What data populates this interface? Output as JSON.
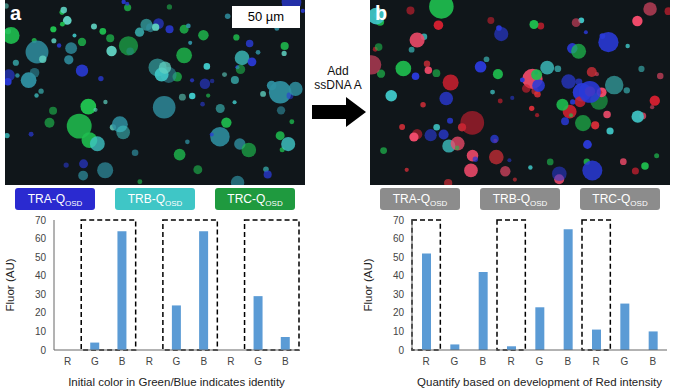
{
  "figure": {
    "arrow_label": [
      "Add",
      "ssDNA A"
    ],
    "panels": [
      {
        "label": "a",
        "scale_bar": "50 µm",
        "markers": [
          {
            "text": "TRA-Q",
            "subscript": "OSD",
            "color": "#2a2ad0"
          },
          {
            "text": "TRB-Q",
            "subscript": "OSD",
            "color": "#3fc6c6"
          },
          {
            "text": "TRC-Q",
            "subscript": "OSD",
            "color": "#1f9a3f"
          }
        ]
      },
      {
        "label": "b",
        "markers": [
          {
            "text": "TRA-Q",
            "subscript": "OSD",
            "color": "#8c8c8c"
          },
          {
            "text": "TRB-Q",
            "subscript": "OSD",
            "color": "#8c8c8c"
          },
          {
            "text": "TRC-Q",
            "subscript": "OSD",
            "color": "#8c8c8c"
          }
        ]
      }
    ]
  },
  "chart_data": [
    {
      "type": "bar",
      "categories": [
        "R",
        "G",
        "B",
        "R",
        "G",
        "B",
        "R",
        "G",
        "B"
      ],
      "values": [
        0,
        4,
        64,
        0,
        24,
        64,
        0,
        29,
        7
      ],
      "color": "#5b9bd5",
      "ylim": [
        0,
        70
      ],
      "yticks": [
        0,
        10,
        20,
        30,
        40,
        50,
        60,
        70
      ],
      "xlabel": "Initial color in Green/Blue indicates identity",
      "ylabel": "Fluor (AU)",
      "grid": false
    },
    {
      "type": "bar",
      "categories": [
        "R",
        "G",
        "B",
        "R",
        "G",
        "B",
        "R",
        "G",
        "B"
      ],
      "values": [
        52,
        3,
        42,
        2,
        23,
        65,
        11,
        25,
        10
      ],
      "color": "#5b9bd5",
      "ylim": [
        0,
        70
      ],
      "yticks": [
        0,
        10,
        20,
        30,
        40,
        50,
        60,
        70
      ],
      "xlabel": "Quantify based on development of Red intensity",
      "ylabel": "Fluor (AU)",
      "grid": false
    }
  ]
}
